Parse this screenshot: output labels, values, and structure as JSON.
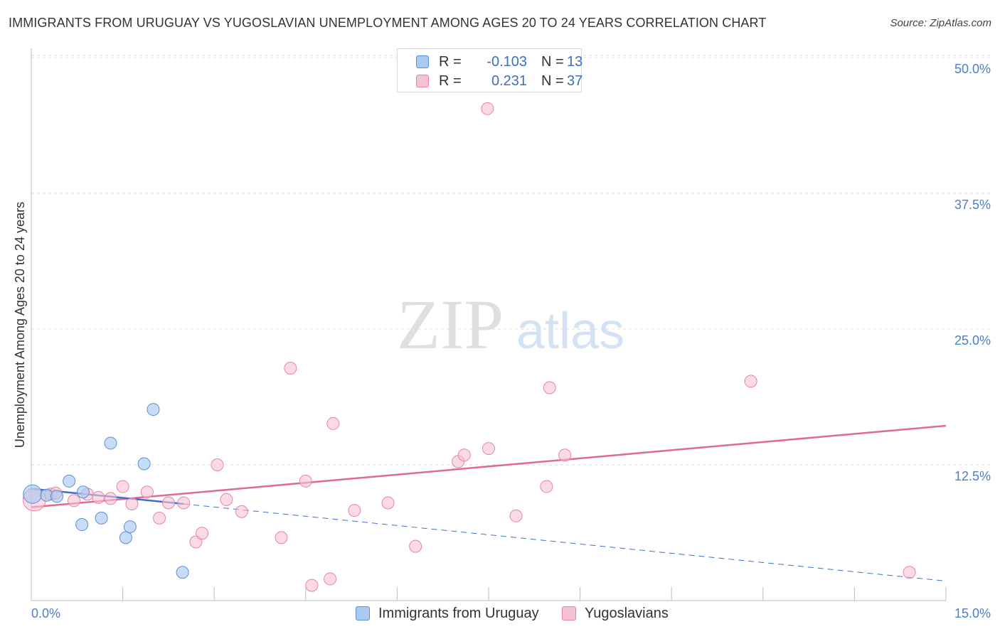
{
  "header": {
    "title": "IMMIGRANTS FROM URUGUAY VS YUGOSLAVIAN UNEMPLOYMENT AMONG AGES 20 TO 24 YEARS CORRELATION CHART",
    "source": "Source: ZipAtlas.com"
  },
  "watermark": {
    "zip": "ZIP",
    "atlas": "atlas"
  },
  "legend": {
    "series1": {
      "r_label": "R =",
      "r_value": "-0.103",
      "n_label": "N =",
      "n_value": "13"
    },
    "series2": {
      "r_label": "R =",
      "r_value": "0.231",
      "n_label": "N =",
      "n_value": "37"
    }
  },
  "bottom_legend": {
    "series1": "Immigrants from Uruguay",
    "series2": "Yugoslavians"
  },
  "colors": {
    "series1_fill": "#a9c9f0",
    "series1_stroke": "#5b8fd6",
    "series1_line": "#3b6fd4",
    "series2_fill": "#f7c3d4",
    "series2_stroke": "#e8849f",
    "series2_line": "#e06a92",
    "grid": "#dcdcdc",
    "axis_text": "#4a7fc9"
  },
  "chart_data": {
    "type": "scatter",
    "title": "IMMIGRANTS FROM URUGUAY VS YUGOSLAVIAN UNEMPLOYMENT AMONG AGES 20 TO 24 YEARS CORRELATION CHART",
    "xlabel": "",
    "ylabel": "Unemployment Among Ages 20 to 24 years",
    "xlim": [
      0,
      15
    ],
    "ylim": [
      0,
      50
    ],
    "x_tick_labels": [
      "0.0%",
      "15.0%"
    ],
    "y_ticks": [
      12.5,
      25.0,
      37.5,
      50.0
    ],
    "y_tick_labels": [
      "12.5%",
      "25.0%",
      "37.5%",
      "50.0%"
    ],
    "grid": true,
    "series": [
      {
        "name": "Immigrants from Uruguay",
        "r": -0.103,
        "n": 13,
        "points": [
          {
            "x": 0.02,
            "y": 9.8,
            "large": true
          },
          {
            "x": 0.25,
            "y": 9.7
          },
          {
            "x": 0.42,
            "y": 9.6
          },
          {
            "x": 0.62,
            "y": 11.0
          },
          {
            "x": 0.85,
            "y": 10.0
          },
          {
            "x": 0.83,
            "y": 7.0
          },
          {
            "x": 1.15,
            "y": 7.6
          },
          {
            "x": 1.3,
            "y": 14.5
          },
          {
            "x": 1.55,
            "y": 5.8
          },
          {
            "x": 1.62,
            "y": 6.8
          },
          {
            "x": 1.85,
            "y": 12.6
          },
          {
            "x": 2.0,
            "y": 17.6
          },
          {
            "x": 2.48,
            "y": 2.6
          }
        ],
        "trend": {
          "x": [
            0.0,
            2.5
          ],
          "y": [
            10.3,
            8.9
          ],
          "dashed_extension": {
            "x": [
              2.5,
              15.0
            ],
            "y": [
              8.9,
              1.8
            ]
          }
        }
      },
      {
        "name": "Yugoslavians",
        "r": 0.231,
        "n": 37,
        "points": [
          {
            "x": 0.05,
            "y": 9.3,
            "large": true
          },
          {
            "x": 0.32,
            "y": 9.8
          },
          {
            "x": 0.7,
            "y": 9.2
          },
          {
            "x": 0.92,
            "y": 9.8
          },
          {
            "x": 1.1,
            "y": 9.5
          },
          {
            "x": 1.3,
            "y": 9.4
          },
          {
            "x": 1.5,
            "y": 10.5
          },
          {
            "x": 1.65,
            "y": 8.9
          },
          {
            "x": 1.9,
            "y": 10.0
          },
          {
            "x": 2.1,
            "y": 7.6
          },
          {
            "x": 2.25,
            "y": 9.0
          },
          {
            "x": 2.5,
            "y": 9.0
          },
          {
            "x": 2.7,
            "y": 5.4
          },
          {
            "x": 2.8,
            "y": 6.2
          },
          {
            "x": 3.05,
            "y": 12.5
          },
          {
            "x": 3.2,
            "y": 9.3
          },
          {
            "x": 3.45,
            "y": 8.2
          },
          {
            "x": 4.1,
            "y": 5.8
          },
          {
            "x": 4.25,
            "y": 21.4
          },
          {
            "x": 4.5,
            "y": 11.0
          },
          {
            "x": 4.6,
            "y": 1.4
          },
          {
            "x": 4.9,
            "y": 2.0
          },
          {
            "x": 4.95,
            "y": 16.3
          },
          {
            "x": 5.3,
            "y": 8.3
          },
          {
            "x": 5.85,
            "y": 9.0
          },
          {
            "x": 6.3,
            "y": 5.0
          },
          {
            "x": 7.0,
            "y": 12.8
          },
          {
            "x": 7.1,
            "y": 13.4
          },
          {
            "x": 7.5,
            "y": 14.0
          },
          {
            "x": 7.48,
            "y": 45.3
          },
          {
            "x": 7.95,
            "y": 7.8
          },
          {
            "x": 8.45,
            "y": 10.5
          },
          {
            "x": 8.5,
            "y": 19.6
          },
          {
            "x": 8.75,
            "y": 13.4
          },
          {
            "x": 11.8,
            "y": 20.2
          },
          {
            "x": 14.4,
            "y": 2.6
          },
          {
            "x": 0.4,
            "y": 9.9
          }
        ],
        "trend": {
          "x": [
            0.0,
            15.0
          ],
          "y": [
            8.6,
            16.1
          ]
        }
      }
    ]
  }
}
